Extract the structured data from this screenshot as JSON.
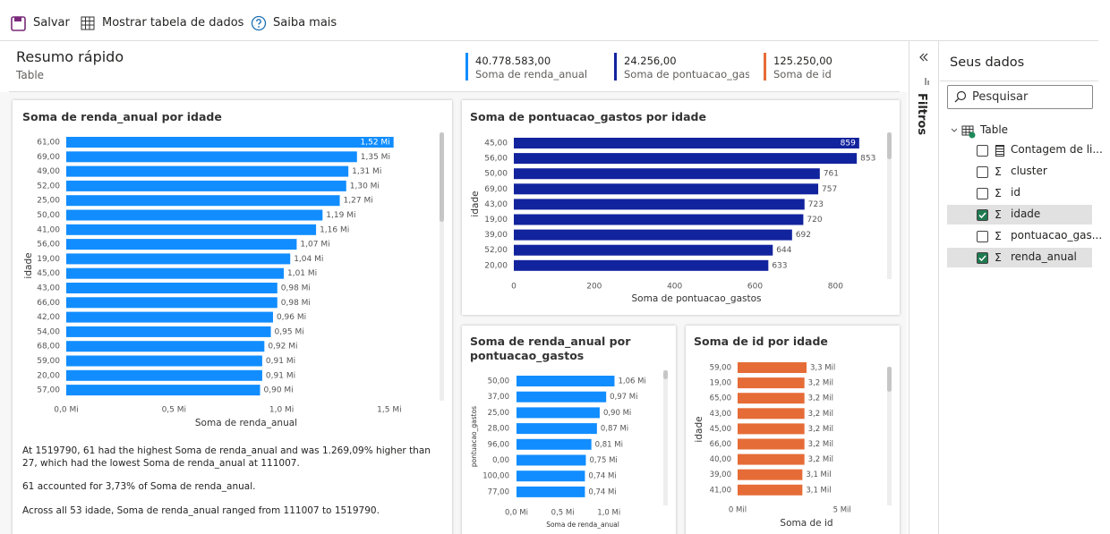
{
  "toolbar": {
    "save": "Salvar",
    "show_table": "Mostrar tabela de dados",
    "learn_more": "Saiba mais"
  },
  "header": {
    "title": "Resumo rápido",
    "subtitle": "Table"
  },
  "kpis": [
    {
      "value": "40.778.583,00",
      "label": "Soma de renda_anual",
      "color": "#118dff"
    },
    {
      "value": "24.256,00",
      "label": "Soma de pontuacao_gastos",
      "color": "#12239e"
    },
    {
      "value": "125.250,00",
      "label": "Soma de id",
      "color": "#e66c37"
    }
  ],
  "chart_data": [
    {
      "type": "hbar",
      "title": "Soma de renda_anual por idade",
      "x_label": "Soma de renda_anual",
      "y_label": "idade",
      "color": "#118dff",
      "categories": [
        "61,00",
        "69,00",
        "49,00",
        "52,00",
        "25,00",
        "50,00",
        "41,00",
        "56,00",
        "19,00",
        "45,00",
        "43,00",
        "66,00",
        "42,00",
        "54,00",
        "68,00",
        "59,00",
        "20,00",
        "57,00"
      ],
      "values": [
        1.52,
        1.35,
        1.31,
        1.3,
        1.27,
        1.19,
        1.16,
        1.07,
        1.04,
        1.01,
        0.98,
        0.98,
        0.96,
        0.95,
        0.92,
        0.91,
        0.91,
        0.9
      ],
      "value_labels": [
        "1,52 Mi",
        "1,35 Mi",
        "1,31 Mi",
        "1,30 Mi",
        "1,27 Mi",
        "1,19 Mi",
        "1,16 Mi",
        "1,07 Mi",
        "1,04 Mi",
        "1,01 Mi",
        "0,98 Mi",
        "0,98 Mi",
        "0,96 Mi",
        "0,95 Mi",
        "0,92 Mi",
        "0,91 Mi",
        "0,91 Mi",
        "0,90 Mi"
      ],
      "xlim": [
        0,
        1.7
      ],
      "xticks": [
        {
          "value": 0,
          "label": "0,0 Mi"
        },
        {
          "value": 0.5,
          "label": "0,5 Mi"
        },
        {
          "value": 1,
          "label": "1,0 Mi"
        },
        {
          "value": 1.5,
          "label": "1,5 Mi"
        }
      ]
    },
    {
      "type": "hbar",
      "title": "Soma de pontuacao_gastos por idade",
      "x_label": "Soma de pontuacao_gastos",
      "y_label": "idade",
      "color": "#12239e",
      "categories": [
        "45,00",
        "56,00",
        "50,00",
        "69,00",
        "43,00",
        "19,00",
        "39,00",
        "52,00",
        "20,00"
      ],
      "values": [
        859,
        853,
        761,
        757,
        723,
        720,
        692,
        644,
        633
      ],
      "xlim": [
        0,
        915
      ],
      "xticks": [
        0,
        200,
        400,
        600,
        800
      ]
    },
    {
      "type": "hbar",
      "title": "Soma de renda_anual por pontuacao_gastos",
      "x_label": "Soma de renda_anual",
      "y_label": "pontuacao_gastos",
      "color": "#118dff",
      "categories": [
        "50,00",
        "37,00",
        "25,00",
        "28,00",
        "96,00",
        "0,00",
        "100,00",
        "77,00"
      ],
      "values": [
        1.06,
        0.97,
        0.9,
        0.87,
        0.81,
        0.75,
        0.74,
        0.74
      ],
      "value_labels": [
        "1,06 Mi",
        "0,97 Mi",
        "0,90 Mi",
        "0,87 Mi",
        "0,81 Mi",
        "0,75 Mi",
        "0,74 Mi",
        "0,74 Mi"
      ],
      "xlim": [
        0,
        1.53
      ],
      "xticks": [
        {
          "value": 0,
          "label": "0,0 Mi"
        },
        {
          "value": 0.5,
          "label": "0,5 Mi"
        },
        {
          "value": 1,
          "label": "1,0 Mi"
        }
      ]
    },
    {
      "type": "hbar",
      "title": "Soma de id por idade",
      "x_label": "Soma de id",
      "y_label": "idade",
      "color": "#e66c37",
      "categories": [
        "59,00",
        "19,00",
        "65,00",
        "43,00",
        "45,00",
        "66,00",
        "40,00",
        "39,00",
        "41,00"
      ],
      "values": [
        3.3,
        3.2,
        3.2,
        3.2,
        3.2,
        3.2,
        3.2,
        3.1,
        3.1
      ],
      "value_labels": [
        "3,3 Mil",
        "3,2 Mil",
        "3,2 Mil",
        "3,2 Mil",
        "3,2 Mil",
        "3,2 Mil",
        "3,2 Mil",
        "3,1 Mil",
        "3,1 Mil"
      ],
      "xlim": [
        0,
        6.9
      ],
      "xticks": [
        {
          "value": 0,
          "label": "0 Mil"
        },
        {
          "value": 5,
          "label": "5 Mil"
        }
      ]
    }
  ],
  "narrative": [
    "At 1519790, 61 had the highest Soma de renda_anual and was 1.269,09% higher than 27, which had the lowest Soma de renda_anual at 111007.",
    "61 accounted for 3,73% of Soma de renda_anual.",
    "Across all 53 idade, Soma de renda_anual ranged from 111007 to 1519790."
  ],
  "filters": {
    "title": "Filtros"
  },
  "panel": {
    "title": "Seus dados",
    "search": "Pesquisar",
    "table": "Table",
    "fields": [
      {
        "icon": "",
        "name": "Contagem de li...",
        "checked": false
      },
      {
        "icon": "Σ",
        "name": "cluster",
        "checked": false
      },
      {
        "icon": "Σ",
        "name": "id",
        "checked": false
      },
      {
        "icon": "Σ",
        "name": "idade",
        "checked": true
      },
      {
        "icon": "Σ",
        "name": "pontuacao_gas...",
        "checked": false
      },
      {
        "icon": "Σ",
        "name": "renda_anual",
        "checked": true
      }
    ]
  }
}
